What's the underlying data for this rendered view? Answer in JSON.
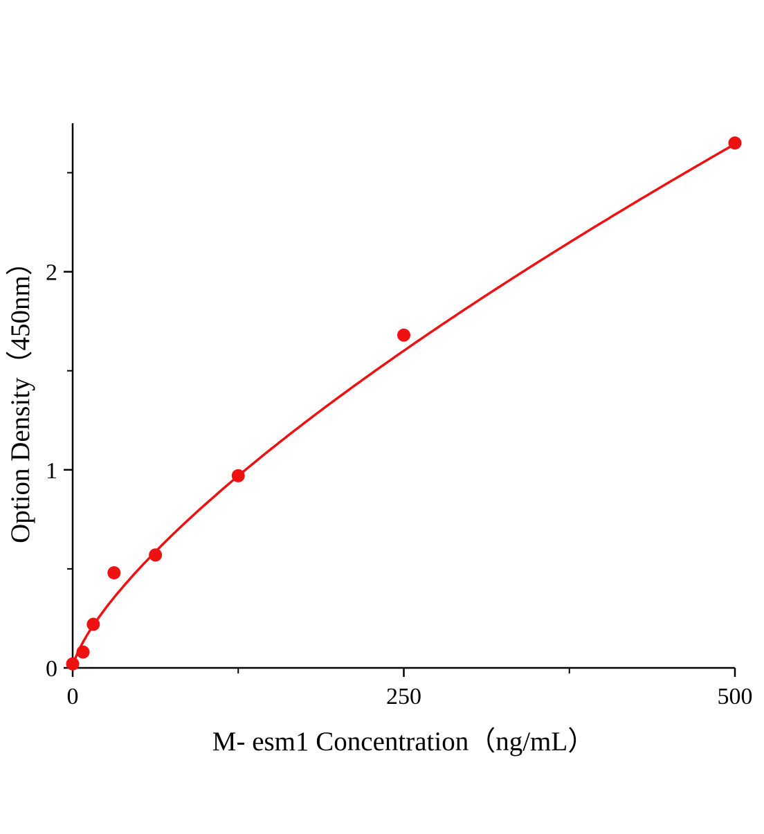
{
  "chart_data": {
    "type": "scatter",
    "title": "",
    "xlabel": "M- esm1 Concentration（ng/mL）",
    "ylabel": "Option Density（450nm）",
    "x": [
      0,
      7.8,
      15.6,
      31.25,
      62.5,
      125,
      250,
      500
    ],
    "y": [
      0.02,
      0.08,
      0.22,
      0.48,
      0.57,
      0.97,
      1.68,
      2.65
    ],
    "xlim": [
      0,
      500
    ],
    "ylim": [
      0,
      2.75
    ],
    "x_major_ticks": [
      0,
      250,
      500
    ],
    "x_minor_ticks": [
      125,
      375
    ],
    "y_major_ticks": [
      0,
      1,
      2
    ],
    "y_minor_ticks": [
      0.5,
      1.5,
      2.5
    ],
    "fit": {
      "type": "power",
      "a": 0.0294,
      "b": 0.724
    },
    "marker_color": "#ee1111",
    "line_color": "#ee1111",
    "axis_color": "#000000",
    "grid": false,
    "legend_position": "none"
  }
}
